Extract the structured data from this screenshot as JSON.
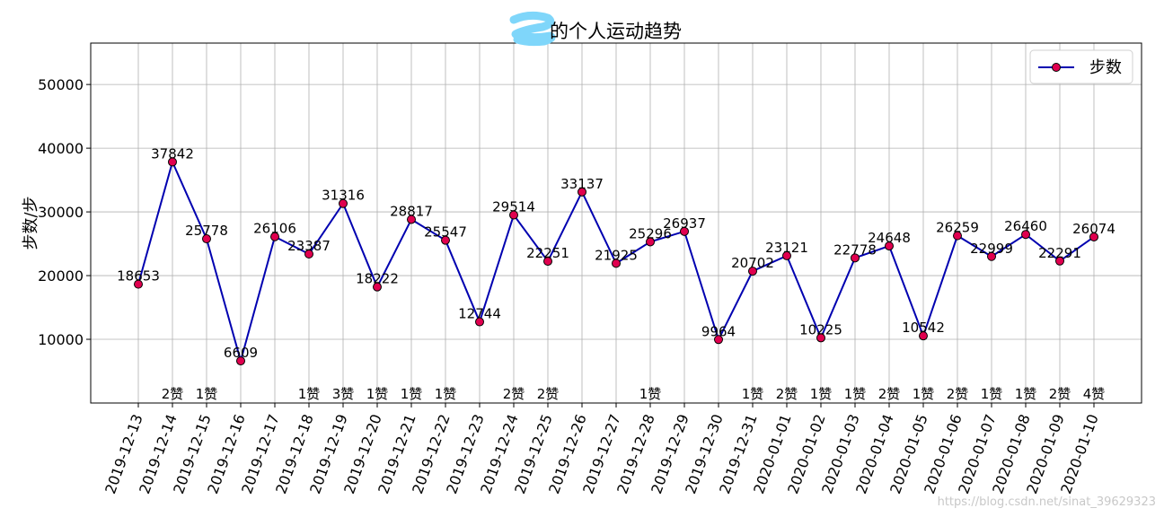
{
  "chart_data": {
    "type": "line",
    "title": "的个人运动趋势",
    "ylabel": "步数/步",
    "xlabel": "",
    "ylim": [
      0,
      56500
    ],
    "yticks": [
      10000,
      20000,
      30000,
      40000,
      50000
    ],
    "grid": true,
    "legend_position": "top-right",
    "categories": [
      "2019-12-13",
      "2019-12-14",
      "2019-12-15",
      "2019-12-16",
      "2019-12-17",
      "2019-12-18",
      "2019-12-19",
      "2019-12-20",
      "2019-12-21",
      "2019-12-22",
      "2019-12-23",
      "2019-12-24",
      "2019-12-25",
      "2019-12-26",
      "2019-12-27",
      "2019-12-28",
      "2019-12-29",
      "2019-12-30",
      "2019-12-31",
      "2020-01-01",
      "2020-01-02",
      "2020-01-03",
      "2020-01-04",
      "2020-01-05",
      "2020-01-06",
      "2020-01-07",
      "2020-01-08",
      "2020-01-09",
      "2020-01-10"
    ],
    "series": [
      {
        "name": "步数",
        "values": [
          18653,
          37842,
          25778,
          6609,
          26106,
          23387,
          31316,
          18222,
          28817,
          25547,
          12744,
          29514,
          22251,
          33137,
          21925,
          25296,
          26937,
          9964,
          20702,
          23121,
          10225,
          22778,
          24648,
          10542,
          26259,
          22999,
          26460,
          22291,
          26074
        ],
        "line_color": "#0000b0",
        "marker_color": "#e0004f"
      }
    ],
    "likes": [
      "",
      "2赞",
      "1赞",
      "",
      "",
      "1赞",
      "3赞",
      "1赞",
      "1赞",
      "1赞",
      "",
      "2赞",
      "2赞",
      "",
      "",
      "1赞",
      "",
      "",
      "1赞",
      "2赞",
      "1赞",
      "1赞",
      "2赞",
      "1赞",
      "2赞",
      "1赞",
      "1赞",
      "2赞",
      "4赞"
    ]
  },
  "watermark": "https://blog.csdn.net/sinat_39629323"
}
